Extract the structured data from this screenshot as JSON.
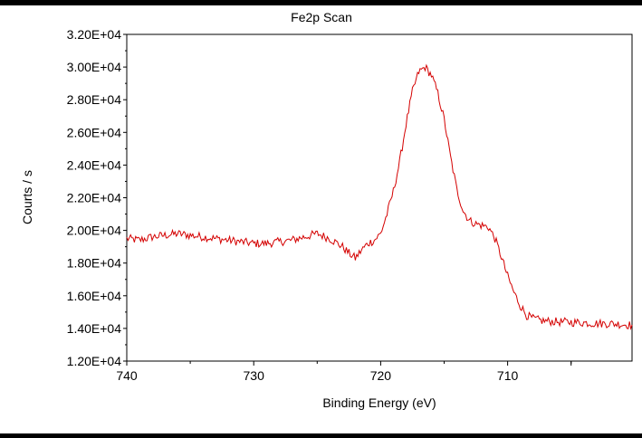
{
  "chart_data": {
    "type": "line",
    "title": "Fe2p Scan",
    "xlabel": "Binding Energy (eV)",
    "ylabel": "Courts / s",
    "xlim": [
      740,
      700.2
    ],
    "ylim": [
      12000,
      32000
    ],
    "x_reversed": true,
    "grid": false,
    "legend": "none",
    "x_ticks": [
      740,
      730,
      720,
      710
    ],
    "x_tick_labels": [
      "740",
      "730",
      "720",
      "710"
    ],
    "y_ticks": [
      12000,
      14000,
      16000,
      18000,
      20000,
      22000,
      24000,
      26000,
      28000,
      30000,
      32000
    ],
    "y_tick_labels": [
      "1.20E+04",
      "1.40E+04",
      "1.60E+04",
      "1.80E+04",
      "2.00E+04",
      "2.20E+04",
      "2.40E+04",
      "2.60E+04",
      "2.80E+04",
      "3.00E+04",
      "3.20E+04"
    ],
    "line_color": "#d40000",
    "series": [
      {
        "x": [
          740,
          739,
          738,
          737,
          736,
          735,
          734,
          733,
          732,
          731,
          730,
          729,
          728,
          727,
          726,
          725,
          724,
          723,
          722.5,
          722,
          721.5,
          721,
          720.5,
          720,
          719.5,
          719,
          718.5,
          718,
          717.5,
          717,
          716.5,
          716,
          715.5,
          715,
          714.5,
          714,
          713.5,
          713,
          712.5,
          712,
          711.5,
          711,
          710.5,
          710,
          709.5,
          709,
          708.5,
          708,
          707.5,
          707,
          706,
          705,
          704,
          703,
          702,
          701,
          700.2
        ],
        "y": [
          19500,
          19400,
          19600,
          19700,
          19800,
          19700,
          19600,
          19500,
          19400,
          19300,
          19200,
          19200,
          19300,
          19400,
          19600,
          19800,
          19500,
          19000,
          18600,
          18300,
          18800,
          19200,
          19400,
          19800,
          21000,
          22400,
          24200,
          26500,
          28500,
          29700,
          30000,
          29500,
          28400,
          26800,
          24500,
          22500,
          21200,
          20600,
          20400,
          20300,
          20200,
          19500,
          18400,
          17200,
          16200,
          15400,
          14800,
          14600,
          14500,
          14450,
          14400,
          14380,
          14350,
          14300,
          14300,
          14250,
          14200
        ]
      }
    ]
  }
}
